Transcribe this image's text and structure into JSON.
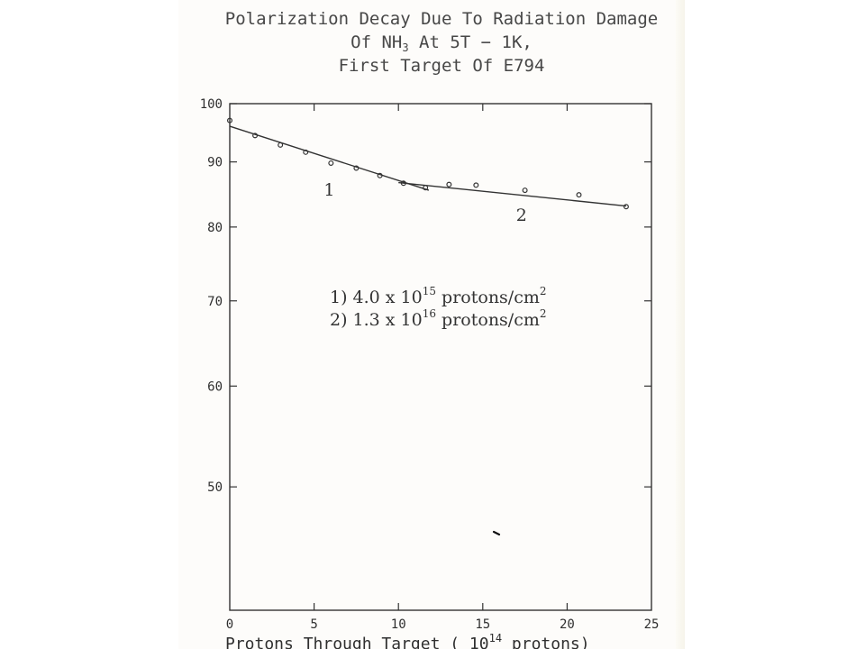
{
  "title": {
    "line1": "Polarization Decay Due To Radiation Damage",
    "line2_pre": "Of NH",
    "line2_sub": "3",
    "line2_post": " At 5T − 1K,",
    "line3": "First Target Of E794"
  },
  "colors": {
    "ink": "#333333",
    "paper": "#fdfcfa"
  },
  "chart_data": {
    "type": "scatter",
    "xlabel": {
      "pre": "Protons Through Target  ( 10",
      "sup": "14",
      "post": " protons)"
    },
    "ylabel": "",
    "xlim": [
      0,
      25
    ],
    "ylim": [
      40,
      100
    ],
    "yscale": "log",
    "x_ticks": [
      0,
      5,
      10,
      15,
      20,
      25
    ],
    "x_tick_labels": [
      "0",
      "5",
      "10",
      "15",
      "20",
      "25"
    ],
    "y_ticks": [
      50,
      60,
      70,
      80,
      90,
      100
    ],
    "y_tick_labels": [
      "50",
      "60",
      "70",
      "80",
      "90",
      "100"
    ],
    "grid": false,
    "points": [
      {
        "x": 0.0,
        "y": 97.0
      },
      {
        "x": 1.5,
        "y": 94.4
      },
      {
        "x": 3.0,
        "y": 92.8
      },
      {
        "x": 4.5,
        "y": 91.6
      },
      {
        "x": 6.0,
        "y": 89.8
      },
      {
        "x": 7.5,
        "y": 89.0
      },
      {
        "x": 8.9,
        "y": 87.8
      },
      {
        "x": 10.3,
        "y": 86.6
      },
      {
        "x": 11.6,
        "y": 85.9
      },
      {
        "x": 13.0,
        "y": 86.4
      },
      {
        "x": 14.6,
        "y": 86.3
      },
      {
        "x": 17.5,
        "y": 85.5
      },
      {
        "x": 20.7,
        "y": 84.8
      },
      {
        "x": 23.5,
        "y": 83.0
      }
    ],
    "fit_lines": [
      {
        "label": "1",
        "x": [
          0.0,
          11.8
        ],
        "y": [
          96.0,
          85.5
        ]
      },
      {
        "label": "2",
        "x": [
          10.0,
          23.5
        ],
        "y": [
          86.7,
          83.1
        ]
      }
    ],
    "line_labels": [
      {
        "text": "1",
        "x": 5.9,
        "y": 84.7
      },
      {
        "text": "2",
        "x": 17.3,
        "y": 80.9
      }
    ],
    "annotations": [
      {
        "prefix": "1)  4.0 x 10",
        "sup1": "15",
        "mid": " protons/cm",
        "sup2": "2"
      },
      {
        "prefix": "2)  1.3 x 10",
        "sup1": "16",
        "mid": " protons/cm",
        "sup2": "2"
      }
    ]
  }
}
